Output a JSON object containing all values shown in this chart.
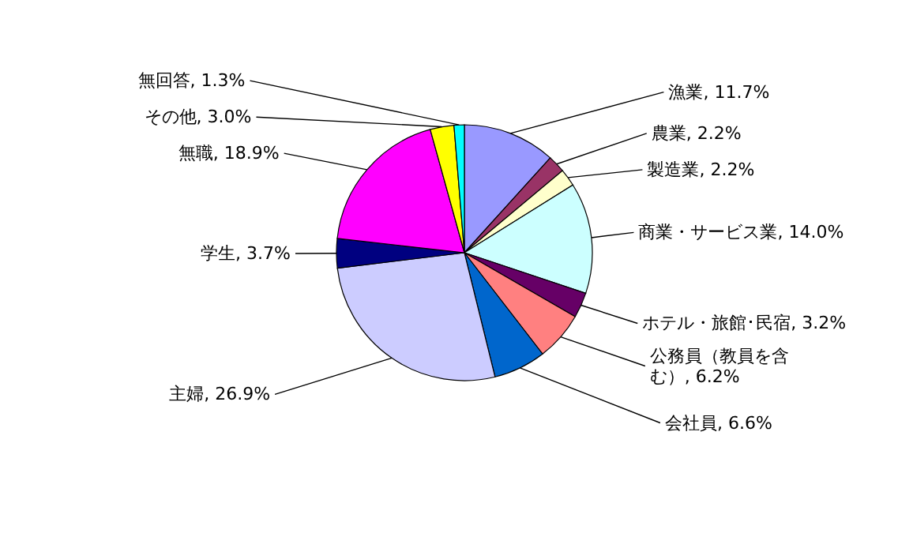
{
  "chart_data": {
    "type": "pie",
    "categories": [
      "漁業",
      "農業",
      "製造業",
      "商業・サービス業",
      "ホテル・旅館･民宿",
      "公務員（教員を含む）",
      "会社員",
      "主婦",
      "学生",
      "無職",
      "その他",
      "無回答"
    ],
    "values": [
      11.7,
      2.2,
      2.2,
      14.0,
      3.2,
      6.2,
      6.6,
      26.9,
      3.7,
      18.9,
      3.0,
      1.3
    ],
    "value_labels": [
      "11.7%",
      "2.2%",
      "2.2%",
      "14.0%",
      "3.2%",
      "6.2%",
      "6.6%",
      "26.9%",
      "3.7%",
      "18.9%",
      "3.0%",
      "1.3%"
    ],
    "colors": [
      "#9999ff",
      "#993366",
      "#ffffcc",
      "#ccffff",
      "#660066",
      "#ff8080",
      "#0066cc",
      "#ccccff",
      "#000080",
      "#ff00ff",
      "#ffff00",
      "#00ffff"
    ]
  }
}
